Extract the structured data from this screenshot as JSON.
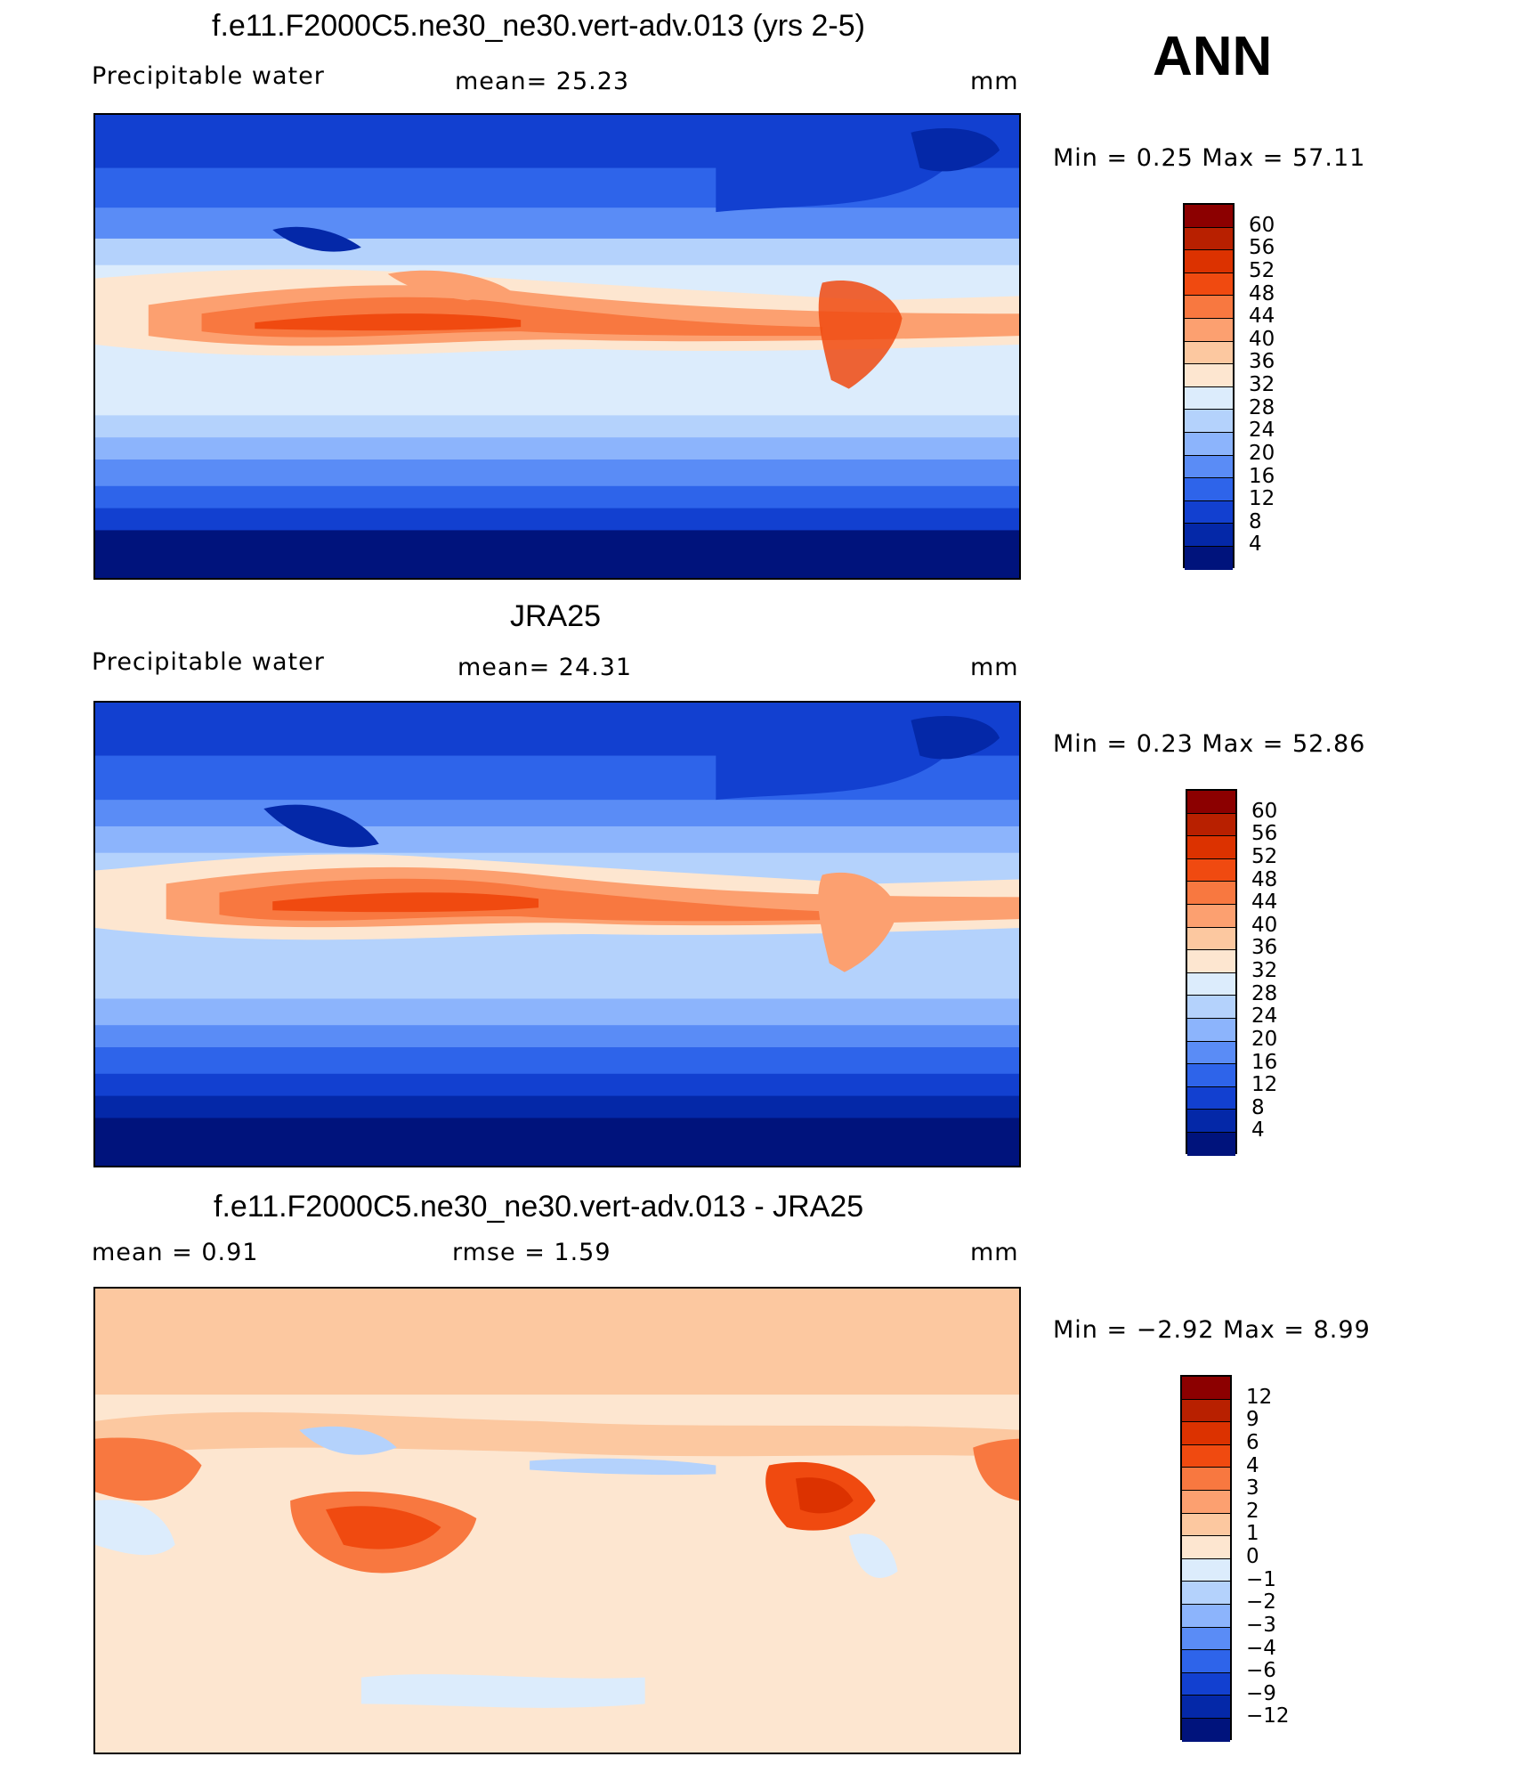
{
  "season": "ANN",
  "panels": [
    {
      "title": "f.e11.F2000C5.ne30_ne30.vert-adv.013 (yrs 2-5)",
      "left_label": "Precipitable  water",
      "center_label": "mean=   25.23",
      "units": "mm",
      "minmax": "Min  =     0.25  Max  =    57.11"
    },
    {
      "title": "JRA25",
      "left_label": "Precipitable  water",
      "center_label": "mean=   24.31",
      "units": "mm",
      "minmax": "Min  =     0.23  Max  =    52.86"
    },
    {
      "title": "f.e11.F2000C5.ne30_ne30.vert-adv.013 - JRA25",
      "left_label": "mean  =      0.91",
      "center_label": "rmse  =      1.59",
      "units": "mm",
      "minmax": "Min  =   −2.92  Max  =      8.99"
    }
  ],
  "chart_data": [
    {
      "type": "heatmap",
      "title": "f.e11.F2000C5.ne30_ne30.vert-adv.013 (yrs 2-5)",
      "variable": "Precipitable  water",
      "units": "mm",
      "mean": 25.23,
      "min": 0.25,
      "max": 57.11,
      "colorbar_levels": [
        "60",
        "56",
        "52",
        "48",
        "44",
        "40",
        "36",
        "32",
        "28",
        "24",
        "20",
        "16",
        "12",
        "8",
        "4"
      ],
      "colors": [
        "#8c0000",
        "#b82000",
        "#dc3200",
        "#f04a10",
        "#f87840",
        "#fca070",
        "#fcc8a0",
        "#fde6d0",
        "#dcecfc",
        "#b4d2fc",
        "#8cb4fc",
        "#5a8cf6",
        "#2e64ea",
        "#1240d0",
        "#0428a8",
        "#00137c"
      ]
    },
    {
      "type": "heatmap",
      "title": "JRA25",
      "variable": "Precipitable  water",
      "units": "mm",
      "mean": 24.31,
      "min": 0.23,
      "max": 52.86,
      "colorbar_levels": [
        "60",
        "56",
        "52",
        "48",
        "44",
        "40",
        "36",
        "32",
        "28",
        "24",
        "20",
        "16",
        "12",
        "8",
        "4"
      ],
      "colors": [
        "#8c0000",
        "#b82000",
        "#dc3200",
        "#f04a10",
        "#f87840",
        "#fca070",
        "#fcc8a0",
        "#fde6d0",
        "#dcecfc",
        "#b4d2fc",
        "#8cb4fc",
        "#5a8cf6",
        "#2e64ea",
        "#1240d0",
        "#0428a8",
        "#00137c"
      ]
    },
    {
      "type": "heatmap",
      "title": "f.e11.F2000C5.ne30_ne30.vert-adv.013 - JRA25",
      "units": "mm",
      "mean": 0.91,
      "rmse": 1.59,
      "min": -2.92,
      "max": 8.99,
      "colorbar_levels": [
        "12",
        "9",
        "6",
        "4",
        "3",
        "2",
        "1",
        "0",
        "−1",
        "−2",
        "−3",
        "−4",
        "−6",
        "−9",
        "−12"
      ],
      "colors": [
        "#8c0000",
        "#b82000",
        "#dc3200",
        "#f04a10",
        "#f87840",
        "#fca070",
        "#fcc8a0",
        "#fde6d0",
        "#dcecfc",
        "#b4d2fc",
        "#8cb4fc",
        "#5a8cf6",
        "#2e64ea",
        "#1240d0",
        "#0428a8",
        "#00137c"
      ]
    }
  ]
}
